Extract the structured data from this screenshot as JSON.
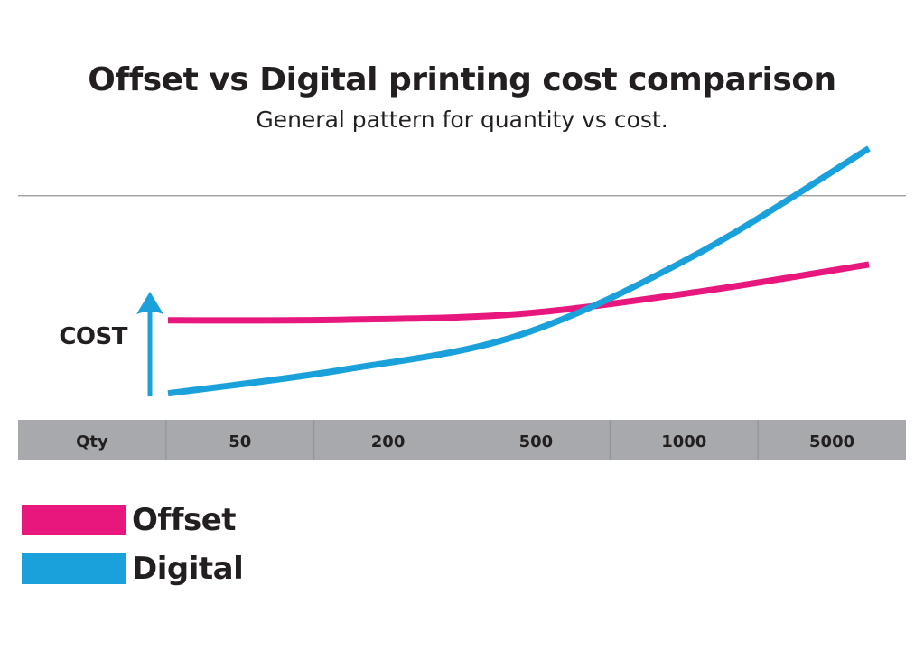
{
  "chart_data": {
    "type": "line",
    "title": "Offset vs Digital printing cost comparison",
    "subtitle": "General pattern for quantity vs cost.",
    "ylabel": "COST",
    "x_header": "Qty",
    "categories": [
      "50",
      "200",
      "500",
      "1000",
      "5000"
    ],
    "ylim": [
      0,
      100
    ],
    "grid": false,
    "legend_position": "bottom-left",
    "series": [
      {
        "name": "Offset",
        "color": "#e8177e",
        "points": [
          [
            0,
            40
          ],
          [
            1,
            40.3
          ],
          [
            2,
            43
          ],
          [
            3,
            53
          ],
          [
            4,
            66
          ]
        ]
      },
      {
        "name": "Digital",
        "color": "#1aa1dc",
        "points": [
          [
            0,
            6
          ],
          [
            1,
            17
          ],
          [
            2,
            33
          ],
          [
            3,
            70
          ],
          [
            4,
            120
          ]
        ]
      }
    ],
    "reference_line_value": 98,
    "colors": {
      "axis_arrow": "#1aa1dc",
      "table_bg": "#a7a9ac",
      "table_divider": "#8f9194",
      "reference_line": "#939598",
      "text": "#231f20"
    }
  }
}
